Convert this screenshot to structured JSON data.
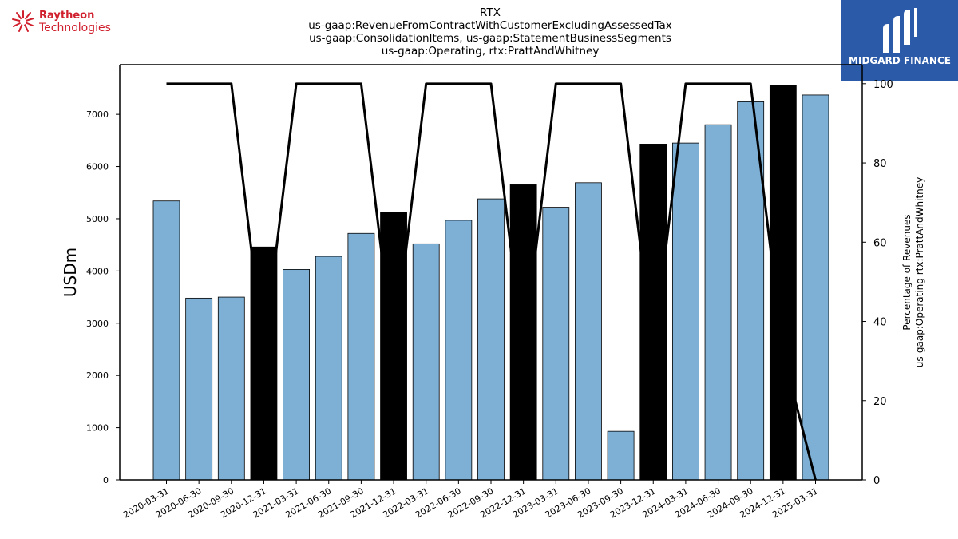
{
  "branding": {
    "left_logo_line1": "Raytheon",
    "left_logo_line2": "Technologies",
    "left_logo_color": "#d0202e",
    "right_logo_text": "MIDGARD FINANCE",
    "right_logo_bg": "#2b5aa8"
  },
  "chart_data": {
    "type": "bar",
    "title_lines": [
      "RTX",
      "us-gaap:RevenueFromContractWithCustomerExcludingAssessedTax",
      "us-gaap:ConsolidationItems, us-gaap:StatementBusinessSegments",
      "us-gaap:Operating, rtx:PrattAndWhitney"
    ],
    "ylabel": "USDm",
    "y2label_lines": [
      "Percentage of Revenues",
      "us-gaap:Operating rtx:PrattAndWhitney"
    ],
    "ylim": [
      0,
      7950
    ],
    "y_ticks": [
      0,
      1000,
      2000,
      3000,
      4000,
      5000,
      6000,
      7000
    ],
    "y2lim": [
      0,
      104.8
    ],
    "y2_ticks": [
      0,
      20,
      40,
      60,
      80,
      100
    ],
    "categories": [
      "2020-03-31",
      "2020-06-30",
      "2020-09-30",
      "2020-12-31",
      "2021-03-31",
      "2021-06-30",
      "2021-09-30",
      "2021-12-31",
      "2022-03-31",
      "2022-06-30",
      "2022-09-30",
      "2022-12-31",
      "2023-03-31",
      "2023-06-30",
      "2023-09-30",
      "2023-12-31",
      "2024-03-31",
      "2024-06-30",
      "2024-09-30",
      "2024-12-31",
      "2025-03-31"
    ],
    "values": [
      5340,
      3480,
      3500,
      4460,
      4030,
      4280,
      4720,
      5120,
      4520,
      4970,
      5380,
      5650,
      5220,
      5690,
      930,
      6430,
      6450,
      6800,
      7240,
      7560,
      7370
    ],
    "highlight": [
      false,
      false,
      false,
      true,
      false,
      false,
      false,
      true,
      false,
      false,
      false,
      true,
      false,
      false,
      false,
      true,
      false,
      false,
      false,
      true,
      false
    ],
    "bar_color": "#7eb0d5",
    "highlight_color": "#000000",
    "percent_line": [
      100,
      100,
      100,
      32,
      100,
      100,
      100,
      32,
      100,
      100,
      100,
      32,
      100,
      100,
      100,
      32,
      100,
      100,
      100,
      32,
      0
    ],
    "line_color": "#000000"
  }
}
